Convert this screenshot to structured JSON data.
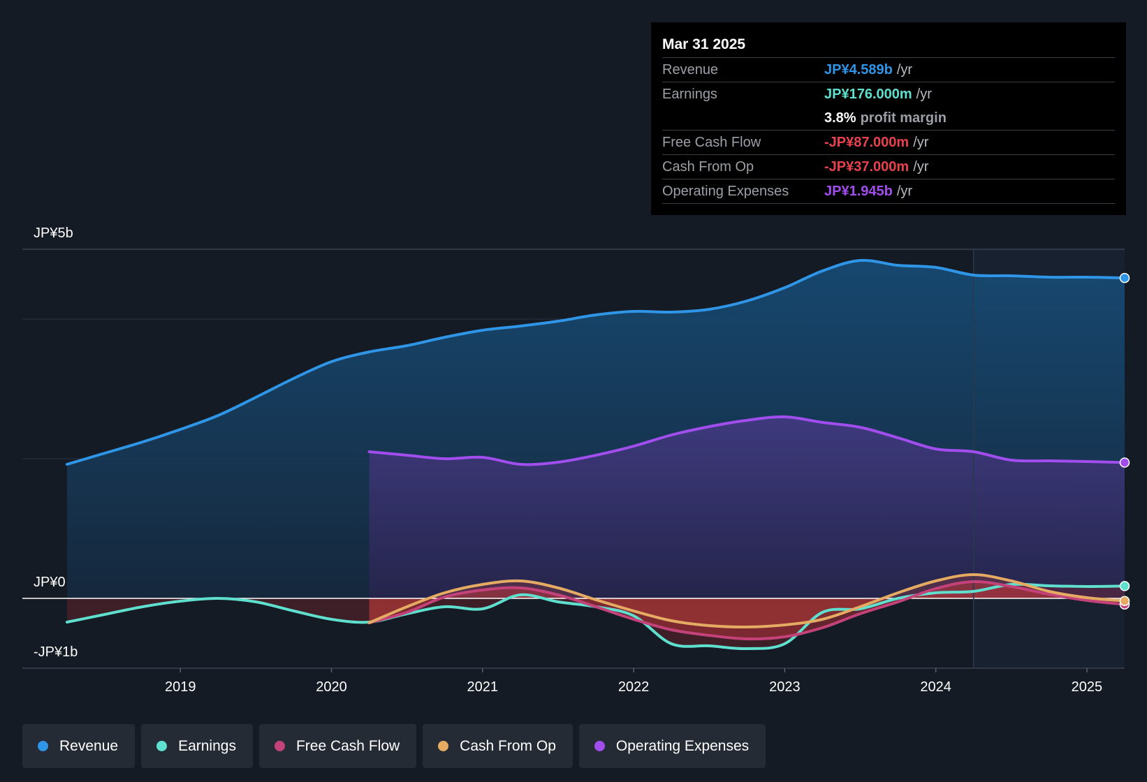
{
  "tooltip": {
    "date": "Mar 31 2025",
    "rows": [
      {
        "label": "Revenue",
        "value": "JP¥4.589b",
        "unit": "/yr",
        "color": "#2f95e6"
      },
      {
        "label": "Earnings",
        "value": "JP¥176.000m",
        "unit": "/yr",
        "color": "#5fe0cf"
      },
      {
        "label": "",
        "value": "3.8%",
        "unit": "profit margin",
        "color": "#ffffff"
      },
      {
        "label": "Free Cash Flow",
        "value": "-JP¥87.000m",
        "unit": "/yr",
        "color": "#e8424f"
      },
      {
        "label": "Cash From Op",
        "value": "-JP¥37.000m",
        "unit": "/yr",
        "color": "#e8424f"
      },
      {
        "label": "Operating Expenses",
        "value": "JP¥1.945b",
        "unit": "/yr",
        "color": "#a24ded"
      }
    ]
  },
  "legend": [
    {
      "label": "Revenue",
      "color": "#2f95e6"
    },
    {
      "label": "Earnings",
      "color": "#5fe0cf"
    },
    {
      "label": "Free Cash Flow",
      "color": "#c4427a"
    },
    {
      "label": "Cash From Op",
      "color": "#e5ab62"
    },
    {
      "label": "Operating Expenses",
      "color": "#a24ded"
    }
  ],
  "chart_data": {
    "type": "line",
    "unit": "JP¥ billions",
    "y_axis_labels": {
      "top": "JP¥5b",
      "zero": "JP¥0",
      "bottom": "-JP¥1b"
    },
    "ylim": [
      -1,
      5
    ],
    "xlim": [
      2018.25,
      2025.25
    ],
    "x_ticks": [
      2019,
      2020,
      2021,
      2022,
      2023,
      2024,
      2025
    ],
    "x_tick_labels": [
      "2019",
      "2020",
      "2021",
      "2022",
      "2023",
      "2024",
      "2025"
    ],
    "past_data_boundary": 2024.25,
    "series": [
      {
        "name": "Revenue",
        "color": "#2f95e6",
        "fill": true,
        "points": [
          [
            2018.25,
            1.92
          ],
          [
            2018.5,
            2.08
          ],
          [
            2018.75,
            2.24
          ],
          [
            2019.0,
            2.42
          ],
          [
            2019.25,
            2.62
          ],
          [
            2019.5,
            2.88
          ],
          [
            2019.75,
            3.15
          ],
          [
            2020.0,
            3.39
          ],
          [
            2020.25,
            3.53
          ],
          [
            2020.5,
            3.62
          ],
          [
            2020.75,
            3.74
          ],
          [
            2021.0,
            3.84
          ],
          [
            2021.25,
            3.9
          ],
          [
            2021.5,
            3.97
          ],
          [
            2021.75,
            4.06
          ],
          [
            2022.0,
            4.11
          ],
          [
            2022.25,
            4.1
          ],
          [
            2022.5,
            4.14
          ],
          [
            2022.75,
            4.26
          ],
          [
            2023.0,
            4.45
          ],
          [
            2023.25,
            4.69
          ],
          [
            2023.5,
            4.84
          ],
          [
            2023.75,
            4.77
          ],
          [
            2024.0,
            4.74
          ],
          [
            2024.25,
            4.63
          ],
          [
            2024.5,
            4.62
          ],
          [
            2024.75,
            4.6
          ],
          [
            2025.0,
            4.6
          ],
          [
            2025.25,
            4.589
          ]
        ]
      },
      {
        "name": "Operating Expenses",
        "color": "#a24ded",
        "fill": true,
        "points": [
          [
            2020.25,
            2.1
          ],
          [
            2020.5,
            2.05
          ],
          [
            2020.75,
            2.0
          ],
          [
            2021.0,
            2.02
          ],
          [
            2021.25,
            1.92
          ],
          [
            2021.5,
            1.95
          ],
          [
            2021.75,
            2.05
          ],
          [
            2022.0,
            2.18
          ],
          [
            2022.25,
            2.34
          ],
          [
            2022.5,
            2.46
          ],
          [
            2022.75,
            2.55
          ],
          [
            2023.0,
            2.6
          ],
          [
            2023.25,
            2.52
          ],
          [
            2023.5,
            2.45
          ],
          [
            2023.75,
            2.3
          ],
          [
            2024.0,
            2.14
          ],
          [
            2024.25,
            2.1
          ],
          [
            2024.5,
            1.98
          ],
          [
            2024.75,
            1.97
          ],
          [
            2025.0,
            1.96
          ],
          [
            2025.25,
            1.945
          ]
        ]
      },
      {
        "name": "Earnings",
        "color": "#5fe0cf",
        "fill": true,
        "points": [
          [
            2018.25,
            -0.34
          ],
          [
            2018.5,
            -0.23
          ],
          [
            2018.75,
            -0.12
          ],
          [
            2019.0,
            -0.04
          ],
          [
            2019.25,
            0.0
          ],
          [
            2019.5,
            -0.05
          ],
          [
            2019.75,
            -0.18
          ],
          [
            2020.0,
            -0.3
          ],
          [
            2020.25,
            -0.34
          ],
          [
            2020.5,
            -0.22
          ],
          [
            2020.75,
            -0.12
          ],
          [
            2021.0,
            -0.15
          ],
          [
            2021.25,
            0.05
          ],
          [
            2021.5,
            -0.05
          ],
          [
            2021.75,
            -0.12
          ],
          [
            2022.0,
            -0.25
          ],
          [
            2022.25,
            -0.65
          ],
          [
            2022.5,
            -0.68
          ],
          [
            2022.75,
            -0.72
          ],
          [
            2023.0,
            -0.65
          ],
          [
            2023.25,
            -0.2
          ],
          [
            2023.5,
            -0.15
          ],
          [
            2023.75,
            0.0
          ],
          [
            2024.0,
            0.08
          ],
          [
            2024.25,
            0.1
          ],
          [
            2024.5,
            0.2
          ],
          [
            2024.75,
            0.18
          ],
          [
            2025.0,
            0.17
          ],
          [
            2025.25,
            0.176
          ]
        ]
      },
      {
        "name": "Free Cash Flow",
        "color": "#c4427a",
        "fill": true,
        "points": [
          [
            2020.25,
            -0.35
          ],
          [
            2020.5,
            -0.2
          ],
          [
            2020.75,
            0.02
          ],
          [
            2021.0,
            0.12
          ],
          [
            2021.25,
            0.15
          ],
          [
            2021.5,
            0.05
          ],
          [
            2021.75,
            -0.12
          ],
          [
            2022.0,
            -0.3
          ],
          [
            2022.25,
            -0.45
          ],
          [
            2022.5,
            -0.53
          ],
          [
            2022.75,
            -0.58
          ],
          [
            2023.0,
            -0.55
          ],
          [
            2023.25,
            -0.42
          ],
          [
            2023.5,
            -0.22
          ],
          [
            2023.75,
            -0.05
          ],
          [
            2024.0,
            0.14
          ],
          [
            2024.25,
            0.24
          ],
          [
            2024.5,
            0.17
          ],
          [
            2024.75,
            0.06
          ],
          [
            2025.0,
            -0.03
          ],
          [
            2025.25,
            -0.087
          ]
        ]
      },
      {
        "name": "Cash From Op",
        "color": "#e5ab62",
        "fill": true,
        "points": [
          [
            2020.25,
            -0.35
          ],
          [
            2020.5,
            -0.12
          ],
          [
            2020.75,
            0.08
          ],
          [
            2021.0,
            0.2
          ],
          [
            2021.25,
            0.25
          ],
          [
            2021.5,
            0.15
          ],
          [
            2021.75,
            -0.02
          ],
          [
            2022.0,
            -0.18
          ],
          [
            2022.25,
            -0.32
          ],
          [
            2022.5,
            -0.39
          ],
          [
            2022.75,
            -0.41
          ],
          [
            2023.0,
            -0.38
          ],
          [
            2023.25,
            -0.3
          ],
          [
            2023.5,
            -0.12
          ],
          [
            2023.75,
            0.08
          ],
          [
            2024.0,
            0.25
          ],
          [
            2024.25,
            0.34
          ],
          [
            2024.5,
            0.25
          ],
          [
            2024.75,
            0.1
          ],
          [
            2025.0,
            0.01
          ],
          [
            2025.25,
            -0.037
          ]
        ]
      }
    ]
  }
}
